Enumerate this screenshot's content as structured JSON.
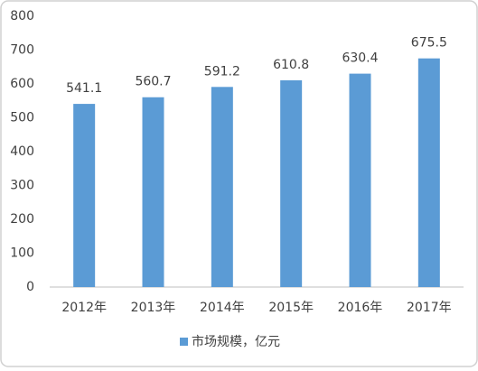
{
  "chart_data": {
    "type": "bar",
    "categories": [
      "2012年",
      "2013年",
      "2014年",
      "2015年",
      "2016年",
      "2017年"
    ],
    "series": [
      {
        "name": "市场规模，亿元",
        "color": "#5b9bd5",
        "values": [
          541.1,
          560.7,
          591.2,
          610.8,
          630.4,
          675.5
        ]
      }
    ],
    "ylim": [
      0,
      800
    ],
    "yticks": [
      0,
      100,
      200,
      300,
      400,
      500,
      600,
      700,
      800
    ],
    "legend": "bottom",
    "grid": false
  }
}
